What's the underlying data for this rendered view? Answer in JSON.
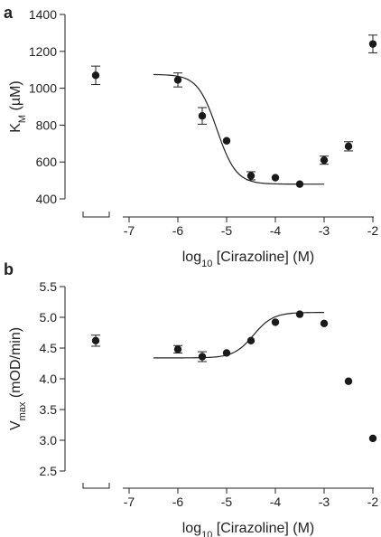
{
  "chart_data": [
    {
      "type": "scatter",
      "panel_label": "a",
      "title": "",
      "xlabel_main": "log",
      "xlabel_sub": "10",
      "xlabel_rest": " [Cirazoline] (M)",
      "ylabel_main": "K",
      "ylabel_sub": "M",
      "ylabel_rest": " (µM)",
      "xlim": [
        -7,
        -2
      ],
      "ylim": [
        400,
        1400
      ],
      "x_ticks": [
        -7,
        -6,
        -5,
        -4,
        -3,
        -2
      ],
      "x_tick_labels": [
        "-7",
        "-6",
        "-5",
        "-4",
        "-3",
        "-2"
      ],
      "y_ticks": [
        400,
        600,
        800,
        1000,
        1200,
        1400
      ],
      "y_tick_labels": [
        "400",
        "600",
        "800",
        "1000",
        "1200",
        "1400"
      ],
      "control_point": {
        "y": 1070,
        "err": 50
      },
      "points": [
        {
          "x": -6.0,
          "y": 1045,
          "err": 38
        },
        {
          "x": -5.5,
          "y": 850,
          "err": 45
        },
        {
          "x": -5.0,
          "y": 715,
          "err": 0
        },
        {
          "x": -4.5,
          "y": 525,
          "err": 22
        },
        {
          "x": -4.0,
          "y": 515,
          "err": 0
        },
        {
          "x": -3.5,
          "y": 480,
          "err": 0
        },
        {
          "x": -3.0,
          "y": 610,
          "err": 22
        },
        {
          "x": -2.5,
          "y": 685,
          "err": 25
        },
        {
          "x": -2.0,
          "y": 1240,
          "err": 48
        }
      ],
      "fit": {
        "x_range": [
          -6.5,
          -3.0
        ],
        "top": 1075,
        "bottom": 480,
        "log_ec50": -5.2,
        "hill": 1.1
      }
    },
    {
      "type": "scatter",
      "panel_label": "b",
      "title": "",
      "xlabel_main": "log",
      "xlabel_sub": "10",
      "xlabel_rest": " [Cirazoline] (M)",
      "ylabel_main": "V",
      "ylabel_sub": "max",
      "ylabel_rest": " (mOD/min)",
      "xlim": [
        -7,
        -2
      ],
      "ylim": [
        2.5,
        5.5
      ],
      "x_ticks": [
        -7,
        -6,
        -5,
        -4,
        -3,
        -2
      ],
      "x_tick_labels": [
        "-7",
        "-6",
        "-5",
        "-4",
        "-3",
        "-2"
      ],
      "y_ticks": [
        2.5,
        3.0,
        3.5,
        4.0,
        4.5,
        5.0,
        5.5
      ],
      "y_tick_labels": [
        "2.5",
        "3.0",
        "3.5",
        "4.0",
        "4.5",
        "5.0",
        "5.5"
      ],
      "control_point": {
        "y": 4.62,
        "err": 0.09
      },
      "points": [
        {
          "x": -6.0,
          "y": 4.48,
          "err": 0.06
        },
        {
          "x": -5.5,
          "y": 4.36,
          "err": 0.08
        },
        {
          "x": -5.0,
          "y": 4.42,
          "err": 0.0
        },
        {
          "x": -4.5,
          "y": 4.62,
          "err": 0.0
        },
        {
          "x": -4.0,
          "y": 4.92,
          "err": 0.0
        },
        {
          "x": -3.5,
          "y": 5.05,
          "err": 0.0
        },
        {
          "x": -3.0,
          "y": 4.9,
          "err": 0.0
        },
        {
          "x": -2.5,
          "y": 3.96,
          "err": 0.0
        },
        {
          "x": -2.0,
          "y": 3.03,
          "err": 0.0
        }
      ],
      "fit": {
        "x_range": [
          -6.5,
          -3.0
        ],
        "top": 5.08,
        "bottom": 4.34,
        "log_ec50": -4.45,
        "hill": 1.2
      }
    }
  ]
}
